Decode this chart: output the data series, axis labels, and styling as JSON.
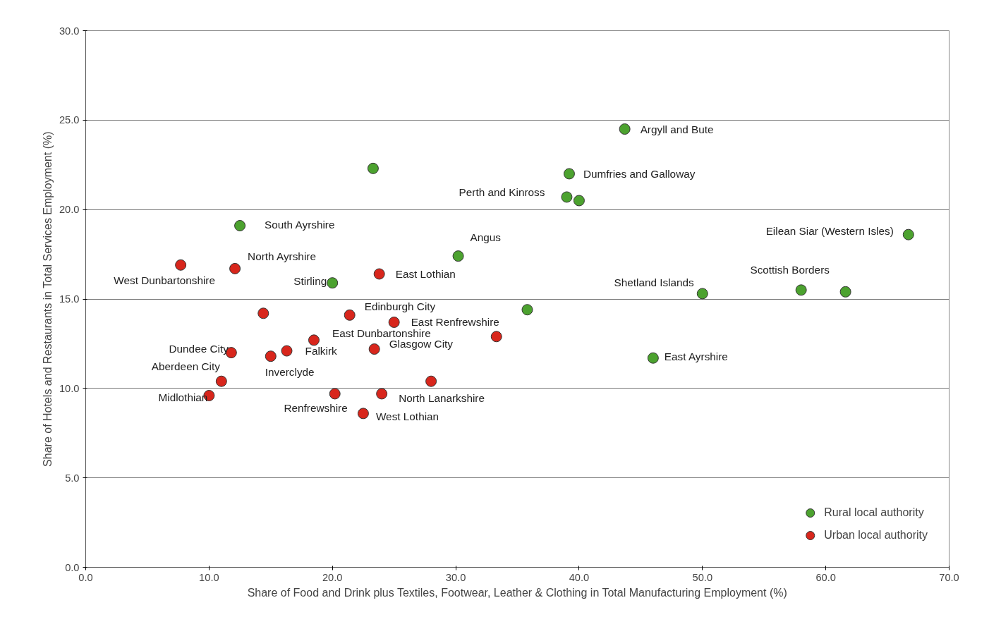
{
  "chart_data": {
    "type": "scatter",
    "xlabel": "Share of Food and Drink plus Textiles, Footwear, Leather & Clothing in Total Manufacturing Employment (%)",
    "ylabel": "Share of Hotels and Restaurants in Total Services Employment (%)",
    "xlim": [
      0,
      70
    ],
    "ylim": [
      0,
      30
    ],
    "xticks": [
      {
        "value": 0,
        "label": "0.0"
      },
      {
        "value": 10,
        "label": "10.0"
      },
      {
        "value": 20,
        "label": "20.0"
      },
      {
        "value": 30,
        "label": "30.0"
      },
      {
        "value": 40,
        "label": "40.0"
      },
      {
        "value": 50,
        "label": "50.0"
      },
      {
        "value": 60,
        "label": "60.0"
      },
      {
        "value": 70,
        "label": "70.0"
      }
    ],
    "yticks": [
      {
        "value": 0,
        "label": "0.0"
      },
      {
        "value": 5,
        "label": "5.0"
      },
      {
        "value": 10,
        "label": "10.0"
      },
      {
        "value": 15,
        "label": "15.0"
      },
      {
        "value": 20,
        "label": "20.0"
      },
      {
        "value": 25,
        "label": "25.0"
      },
      {
        "value": 30,
        "label": "30.0"
      }
    ],
    "grid": "y",
    "legend": "bottom right",
    "marker": "circle",
    "series": [
      {
        "name": "Rural local authority",
        "color": "#4ca22f",
        "x": [
          43.7,
          23.3,
          39.2,
          39.0,
          40.0,
          12.5,
          66.7,
          30.2,
          20.0,
          50.0,
          58.0,
          61.6,
          35.8,
          46.0
        ],
        "values": [
          24.5,
          22.3,
          22.0,
          20.7,
          20.5,
          19.1,
          18.6,
          17.4,
          15.9,
          15.3,
          15.5,
          15.4,
          14.4,
          11.7
        ]
      },
      {
        "name": "Urban local authority",
        "color": "#d8261c",
        "x": [
          7.7,
          12.1,
          23.8,
          14.4,
          21.4,
          25.0,
          18.5,
          33.3,
          23.4,
          11.8,
          16.3,
          15.0,
          11.0,
          28.0,
          10.0,
          20.2,
          24.0,
          22.5
        ],
        "values": [
          16.9,
          16.7,
          16.4,
          14.2,
          14.1,
          13.7,
          12.7,
          12.9,
          12.2,
          12.0,
          12.1,
          11.8,
          10.4,
          10.4,
          9.6,
          9.7,
          9.7,
          8.6
        ]
      }
    ],
    "annotations": [
      {
        "text": "Argyll and Bute",
        "x": 43.7,
        "y": 24.5
      },
      {
        "text": "Dumfries and Galloway",
        "x": 39.2,
        "y": 22.0
      },
      {
        "text": "Perth and Kinross",
        "x": 39.0,
        "y": 20.7
      },
      {
        "text": "South Ayrshire",
        "x": 12.5,
        "y": 19.1
      },
      {
        "text": "Eilean Siar (Western Isles)",
        "x": 66.7,
        "y": 18.6
      },
      {
        "text": "Angus",
        "x": 30.2,
        "y": 17.4
      },
      {
        "text": "Stirling",
        "x": 20.0,
        "y": 15.9
      },
      {
        "text": "Shetland Islands",
        "x": 50.0,
        "y": 15.3
      },
      {
        "text": "Scottish Borders",
        "x": 58.0,
        "y": 15.5
      },
      {
        "text": "East Ayrshire",
        "x": 46.0,
        "y": 11.7
      },
      {
        "text": "West Dunbartonshire",
        "x": 7.7,
        "y": 16.9
      },
      {
        "text": "North Ayrshire",
        "x": 12.1,
        "y": 16.7
      },
      {
        "text": "East Lothian",
        "x": 23.8,
        "y": 16.4
      },
      {
        "text": "Edinburgh City",
        "x": 21.4,
        "y": 14.1
      },
      {
        "text": "East Renfrewshire",
        "x": 25.0,
        "y": 13.7
      },
      {
        "text": "East Dunbartonshire",
        "x": 18.5,
        "y": 12.7
      },
      {
        "text": "Glasgow City",
        "x": 23.4,
        "y": 12.2
      },
      {
        "text": "Dundee City",
        "x": 11.8,
        "y": 12.0
      },
      {
        "text": "Falkirk",
        "x": 16.3,
        "y": 12.1
      },
      {
        "text": "Inverclyde",
        "x": 15.0,
        "y": 11.8
      },
      {
        "text": "Aberdeen City",
        "x": 11.0,
        "y": 10.4
      },
      {
        "text": "Midlothian",
        "x": 10.0,
        "y": 9.6
      },
      {
        "text": "Renfrewshire",
        "x": 20.2,
        "y": 9.7
      },
      {
        "text": "North Lanarkshire",
        "x": 24.0,
        "y": 9.7
      },
      {
        "text": "West Lothian",
        "x": 22.5,
        "y": 8.6
      }
    ]
  }
}
